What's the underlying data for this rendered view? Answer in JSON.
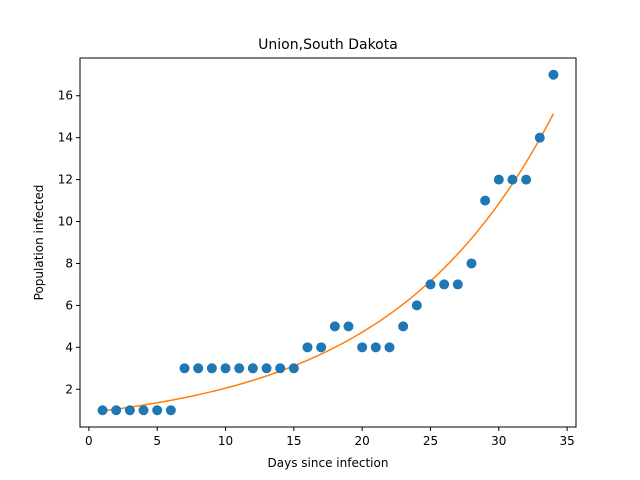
{
  "chart_data": {
    "type": "scatter",
    "title": "Union,South Dakota",
    "xlabel": "Days since infection",
    "ylabel": "Population infected",
    "xlim": [
      -0.65,
      35.65
    ],
    "ylim": [
      0.2,
      17.8
    ],
    "xticks": [
      0,
      5,
      10,
      15,
      20,
      25,
      30,
      35
    ],
    "yticks": [
      2,
      4,
      6,
      8,
      10,
      12,
      14,
      16
    ],
    "grid": false,
    "series": [
      {
        "kind": "points",
        "color": "#1f77b4",
        "x": [
          1,
          2,
          3,
          4,
          5,
          6,
          7,
          8,
          9,
          10,
          11,
          12,
          13,
          14,
          15,
          16,
          17,
          18,
          19,
          20,
          21,
          22,
          23,
          24,
          25,
          26,
          27,
          28,
          29,
          30,
          31,
          32,
          33,
          34
        ],
        "y": [
          1,
          1,
          1,
          1,
          1,
          1,
          3,
          3,
          3,
          3,
          3,
          3,
          3,
          3,
          3,
          4,
          4,
          5,
          5,
          4,
          4,
          4,
          5,
          6,
          7,
          7,
          7,
          8,
          11,
          12,
          12,
          12,
          14,
          17
        ]
      },
      {
        "kind": "fit-line",
        "color": "#ff7f0e",
        "x": [
          1,
          34
        ],
        "y": [
          0.97,
          15.15
        ]
      }
    ]
  }
}
